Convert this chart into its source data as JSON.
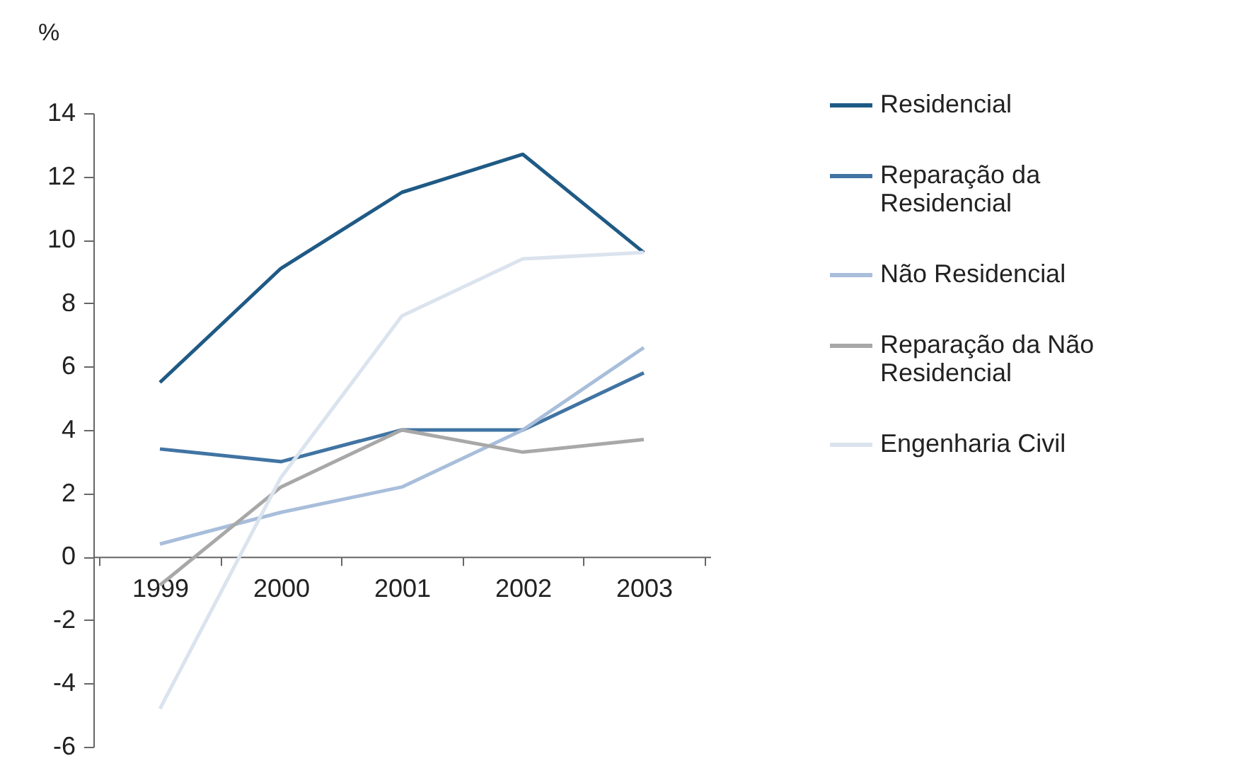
{
  "chart_data": {
    "type": "line",
    "ylabel": "%",
    "categories": [
      "1999",
      "2000",
      "2001",
      "2002",
      "2003"
    ],
    "series": [
      {
        "name": "Residencial",
        "color": "#1f5a85",
        "values": [
          5.5,
          9.1,
          11.5,
          12.7,
          9.6
        ]
      },
      {
        "name": "Reparação da Residencial",
        "color": "#4174a3",
        "values": [
          3.4,
          3.0,
          4.0,
          4.0,
          5.8
        ]
      },
      {
        "name": "Não Residencial",
        "color": "#a8bedb",
        "values": [
          0.4,
          1.4,
          2.2,
          4.0,
          6.6
        ]
      },
      {
        "name": "Reparação da Não Residencial",
        "color": "#a8a8a8",
        "values": [
          -0.9,
          2.2,
          4.0,
          3.3,
          3.7
        ]
      },
      {
        "name": "Engenharia Civil",
        "color": "#dbe3ee",
        "values": [
          -4.8,
          2.5,
          7.6,
          9.4,
          9.6
        ]
      }
    ],
    "ylim": [
      -6,
      14
    ],
    "yticks": [
      -6,
      -4,
      -2,
      0,
      2,
      4,
      6,
      8,
      10,
      12,
      14
    ],
    "grid": false,
    "legend": "right",
    "marker": "none",
    "line_style": "solid"
  }
}
